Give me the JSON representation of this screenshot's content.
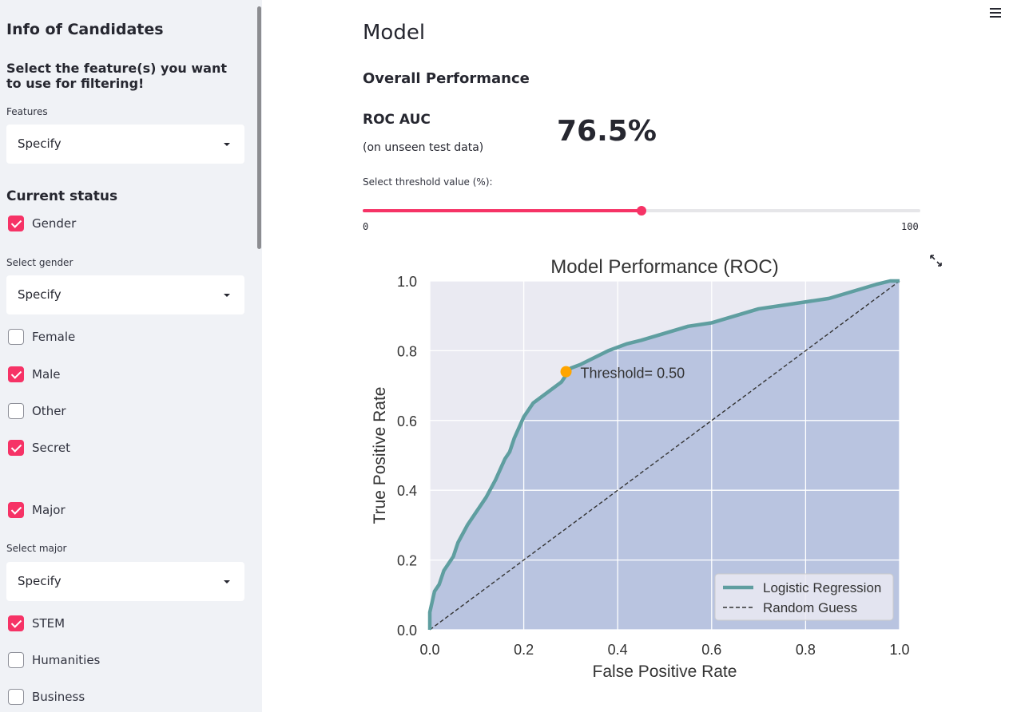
{
  "sidebar": {
    "title": "Info of Candidates",
    "subtitle": "Select the feature(s) you want to use for filtering!",
    "features_label": "Features",
    "features_value": "Specify",
    "current_status": "Current status",
    "gender_checkbox": {
      "label": "Gender",
      "checked": true
    },
    "select_gender_label": "Select gender",
    "select_gender_value": "Specify",
    "gender_options": [
      {
        "label": "Female",
        "checked": false
      },
      {
        "label": "Male",
        "checked": true
      },
      {
        "label": "Other",
        "checked": false
      },
      {
        "label": "Secret",
        "checked": true
      }
    ],
    "major_checkbox": {
      "label": "Major",
      "checked": true
    },
    "select_major_label": "Select major",
    "select_major_value": "Specify",
    "major_options": [
      {
        "label": "STEM",
        "checked": true
      },
      {
        "label": "Humanities",
        "checked": false
      },
      {
        "label": "Business",
        "checked": false
      }
    ]
  },
  "main": {
    "title": "Model",
    "section": "Overall Performance",
    "metric_label": "ROC AUC",
    "metric_note": "(on unseen test data)",
    "metric_value": "76.5%",
    "slider_label": "Select threshold value (%):",
    "slider_min": "0",
    "slider_max": "100",
    "slider_value": 50
  },
  "colors": {
    "accent": "#f63366",
    "roc_line": "#5f9ea0",
    "fill": "#b9c4e0",
    "plot_bg": "#eaeaf2",
    "threshold_point": "#ffa500"
  },
  "chart_data": {
    "type": "line",
    "title": "Model Performance (ROC)",
    "xlabel": "False Positive Rate",
    "ylabel": "True Positive Rate",
    "xlim": [
      0.0,
      1.0
    ],
    "ylim": [
      0.0,
      1.0
    ],
    "xticks": [
      "0.0",
      "0.2",
      "0.4",
      "0.6",
      "0.8",
      "1.0"
    ],
    "yticks": [
      "0.0",
      "0.2",
      "0.4",
      "0.6",
      "0.8",
      "1.0"
    ],
    "grid": true,
    "legend_position": "bottom-right",
    "series": [
      {
        "name": "Logistic Regression",
        "x": [
          0.0,
          0.0,
          0.01,
          0.02,
          0.03,
          0.05,
          0.06,
          0.08,
          0.1,
          0.12,
          0.14,
          0.15,
          0.16,
          0.17,
          0.18,
          0.19,
          0.2,
          0.22,
          0.24,
          0.26,
          0.28,
          0.29,
          0.3,
          0.32,
          0.35,
          0.38,
          0.42,
          0.45,
          0.5,
          0.55,
          0.6,
          0.65,
          0.7,
          0.75,
          0.8,
          0.85,
          0.9,
          0.95,
          0.98,
          1.0
        ],
        "y": [
          0.0,
          0.05,
          0.11,
          0.13,
          0.17,
          0.21,
          0.25,
          0.3,
          0.34,
          0.38,
          0.43,
          0.46,
          0.49,
          0.51,
          0.55,
          0.58,
          0.61,
          0.65,
          0.67,
          0.69,
          0.71,
          0.73,
          0.75,
          0.76,
          0.78,
          0.8,
          0.82,
          0.83,
          0.85,
          0.87,
          0.88,
          0.9,
          0.92,
          0.93,
          0.94,
          0.95,
          0.97,
          0.99,
          1.0,
          1.0
        ]
      },
      {
        "name": "Random Guess",
        "x": [
          0.0,
          1.0
        ],
        "y": [
          0.0,
          1.0
        ]
      }
    ],
    "threshold_point": {
      "x": 0.29,
      "y": 0.74,
      "label": "Threshold= 0.50"
    }
  }
}
